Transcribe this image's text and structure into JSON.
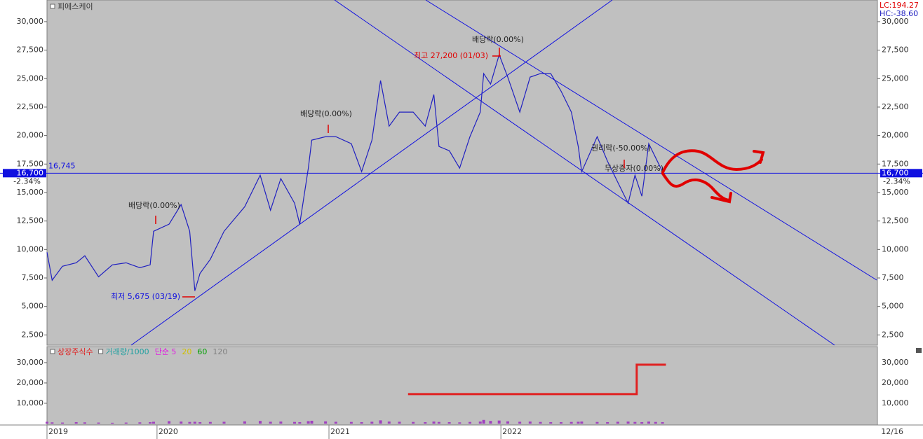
{
  "chart_data": {
    "type": "line",
    "title": "피에스케이",
    "indicators": [
      "LC:194.27",
      "HC:-38.60"
    ],
    "xlim": [
      2019.36,
      2024.19
    ],
    "xticks": [
      {
        "value": 2019.36,
        "label": "2019"
      },
      2020,
      2021,
      2022
    ],
    "end_date_label": "12/16",
    "ylim": [
      1600,
      31900
    ],
    "yticks": [
      {
        "value": 2500,
        "label": "2,500"
      },
      {
        "value": 5000,
        "label": "5,000"
      },
      {
        "value": 7500,
        "label": "7,500"
      },
      {
        "value": 10000,
        "label": "10,000"
      },
      {
        "value": 12500,
        "label": "12,500"
      },
      {
        "value": 15000,
        "label": "15,000"
      },
      {
        "value": 17500,
        "label": "17,500"
      },
      {
        "value": 20000,
        "label": "20,000"
      },
      {
        "value": 22500,
        "label": "22,500"
      },
      {
        "value": 25000,
        "label": "25,000"
      },
      {
        "value": 27500,
        "label": "27,500"
      },
      {
        "value": 30000,
        "label": "30,000"
      }
    ],
    "grid": false,
    "x": [
      2019.36,
      2019.39,
      2019.45,
      2019.53,
      2019.58,
      2019.66,
      2019.74,
      2019.82,
      2019.9,
      2019.96,
      2019.98,
      2020.07,
      2020.14,
      2020.19,
      2020.22,
      2020.25,
      2020.31,
      2020.39,
      2020.51,
      2020.6,
      2020.66,
      2020.72,
      2020.8,
      2020.83,
      2020.88,
      2020.9,
      2020.98,
      2021.04,
      2021.13,
      2021.19,
      2021.25,
      2021.3,
      2021.35,
      2021.41,
      2021.49,
      2021.56,
      2021.61,
      2021.64,
      2021.7,
      2021.76,
      2021.82,
      2021.88,
      2021.9,
      2021.94,
      2021.99,
      2022.04,
      2022.11,
      2022.17,
      2022.23,
      2022.29,
      2022.35,
      2022.41,
      2022.45,
      2022.47,
      2022.56,
      2022.62,
      2022.68,
      2022.74,
      2022.78,
      2022.82,
      2022.86,
      2022.9,
      2022.94
    ],
    "series": [
      {
        "name": "피에스케이",
        "color": "#2020c0",
        "values": [
          9760,
          7300,
          8530,
          8830,
          9450,
          7600,
          8650,
          8830,
          8400,
          8650,
          11600,
          12220,
          13940,
          11600,
          6370,
          7900,
          9140,
          11600,
          13750,
          16520,
          13450,
          16220,
          14060,
          12220,
          17140,
          19600,
          19900,
          19900,
          19290,
          16830,
          19600,
          24830,
          20830,
          22060,
          22060,
          20830,
          23600,
          19040,
          18670,
          17140,
          19900,
          22060,
          25440,
          24520,
          27100,
          25130,
          22060,
          25130,
          25440,
          25440,
          23900,
          22060,
          19040,
          16830,
          19900,
          17750,
          15900,
          14060,
          16520,
          14680,
          19290,
          18060,
          16830
        ]
      }
    ],
    "last": {
      "value": 16700,
      "label": "16,700"
    },
    "change": {
      "value": -2.34,
      "label": "-2.34%"
    },
    "level": {
      "value": 16745,
      "label": "16,745"
    },
    "annotations": [
      "배당락(0.00%)",
      "배당락(0.00%)",
      "배당락(0.00%)",
      "최고 27,200 (01/03)",
      "최저 5,675 (03/19)",
      "권리락(-50.00%)",
      "무상증자(0.00%)"
    ],
    "volume_panel": {
      "legend": [
        "상장주식수",
        "거래량/1000",
        "단순 5",
        "20",
        "60",
        "120"
      ],
      "legend_colors": [
        "#e02020",
        "#20a0a0",
        "#e020e0",
        "#d0c000",
        "#00a000",
        "#808080"
      ],
      "ylim": [
        0,
        37900
      ],
      "yticks": [
        {
          "value": 10000,
          "label": "10,000"
        },
        {
          "value": 20000,
          "label": "20,000"
        },
        {
          "value": 30000,
          "label": "30,000"
        }
      ],
      "shares": {
        "color": "#e02020",
        "x": [
          2021.46,
          2022.79,
          2022.79,
          2022.96
        ],
        "values": [
          14500,
          14500,
          29000,
          29000
        ]
      },
      "volume": {
        "color": "#a040c0",
        "values": [
          900,
          600,
          500,
          700,
          600,
          500,
          400,
          500,
          600,
          700,
          900,
          1200,
          1000,
          800,
          900,
          700,
          800,
          900,
          1100,
          1300,
          900,
          1000,
          800,
          700,
          1200,
          1400,
          1100,
          900,
          800,
          700,
          900,
          1600,
          1000,
          900,
          800,
          700,
          1000,
          800,
          700,
          600,
          800,
          1000,
          1800,
          1300,
          1500,
          1100,
          900,
          1000,
          800,
          700,
          700,
          800,
          900,
          1000,
          800,
          700,
          900,
          1000,
          800,
          700,
          1000,
          800,
          700
        ]
      }
    }
  }
}
